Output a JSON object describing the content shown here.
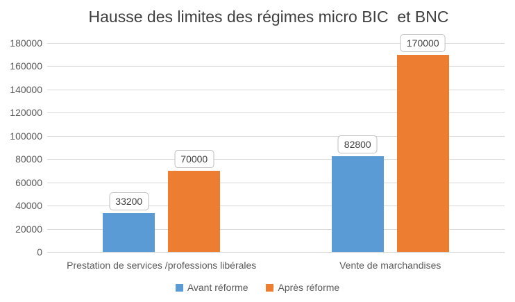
{
  "chart_data": {
    "type": "bar",
    "title": "Hausse des limites des régimes micro BIC  et BNC",
    "categories": [
      "Prestation de services /professions libérales",
      "Vente de marchandises"
    ],
    "series": [
      {
        "name": "Avant réforme",
        "color": "#5B9BD5",
        "values": [
          33200,
          82800
        ]
      },
      {
        "name": "Après réforme",
        "color": "#ED7D31",
        "values": [
          70000,
          170000
        ]
      }
    ],
    "data_labels": [
      [
        "33200",
        "82800"
      ],
      [
        "70000",
        "170000"
      ]
    ],
    "y_ticks": [
      "0",
      "20000",
      "40000",
      "60000",
      "80000",
      "100000",
      "120000",
      "140000",
      "160000",
      "180000"
    ],
    "ylim": [
      0,
      180000
    ],
    "xlabel": "",
    "ylabel": "",
    "grid": true,
    "legend_position": "bottom",
    "colors": {
      "background": "#FFFFFF",
      "gridline": "#D9D9D9",
      "axis_text": "#595959",
      "title_text": "#404040",
      "data_label_border": "#BFBFBF"
    }
  }
}
